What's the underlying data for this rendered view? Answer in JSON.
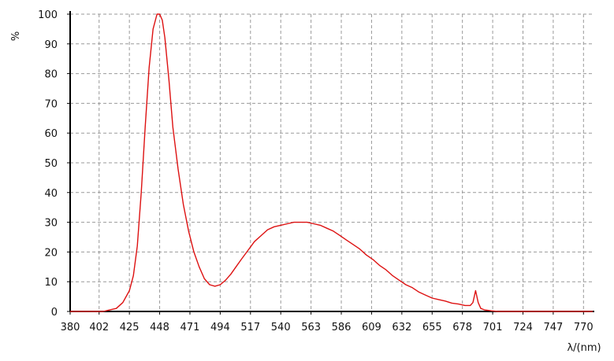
{
  "chart_data": {
    "type": "line",
    "title": "",
    "xlabel": "λ/(nm)",
    "ylabel": "%",
    "xlim": [
      380,
      777
    ],
    "ylim": [
      0,
      100
    ],
    "grid": true,
    "x_ticks": [
      380,
      402,
      425,
      448,
      471,
      494,
      517,
      540,
      563,
      586,
      609,
      632,
      655,
      678,
      701,
      724,
      747,
      770
    ],
    "y_ticks": [
      0,
      10,
      20,
      30,
      40,
      50,
      60,
      70,
      80,
      90,
      100
    ],
    "colors": {
      "series": "#dd1111",
      "axis": "#000000",
      "grid": "#999999"
    },
    "series": [
      {
        "x": [
          380,
          405,
          410,
          415,
          420,
          425,
          428,
          431,
          434,
          437,
          440,
          443,
          446,
          448,
          450,
          452,
          455,
          458,
          462,
          466,
          470,
          474,
          478,
          482,
          486,
          490,
          494,
          498,
          502,
          506,
          510,
          515,
          520,
          525,
          530,
          535,
          540,
          545,
          550,
          555,
          560,
          565,
          570,
          575,
          580,
          585,
          590,
          595,
          600,
          605,
          610,
          615,
          620,
          625,
          630,
          635,
          640,
          645,
          650,
          655,
          660,
          665,
          670,
          675,
          680,
          684,
          686,
          688,
          690,
          692,
          695,
          700,
          705,
          710,
          720,
          730,
          740,
          750,
          760,
          777
        ],
        "y": [
          0,
          0,
          0.5,
          1,
          3,
          7,
          12,
          22,
          40,
          62,
          82,
          95,
          100,
          100,
          98,
          92,
          78,
          62,
          48,
          36,
          27,
          20,
          15,
          11,
          9,
          8.5,
          9,
          10.5,
          12.5,
          15,
          17.5,
          20.5,
          23.5,
          25.5,
          27.5,
          28.5,
          29,
          29.5,
          30,
          30,
          30,
          29.5,
          29,
          28,
          27,
          25.5,
          24,
          22.5,
          21,
          19,
          17.5,
          15.5,
          14,
          12,
          10.5,
          9,
          8,
          6.5,
          5.5,
          4.5,
          4,
          3.5,
          2.8,
          2.5,
          2,
          2,
          3,
          7,
          3,
          1,
          0.5,
          0.2,
          0,
          0,
          0,
          0,
          0,
          0,
          0,
          0
        ]
      }
    ]
  }
}
